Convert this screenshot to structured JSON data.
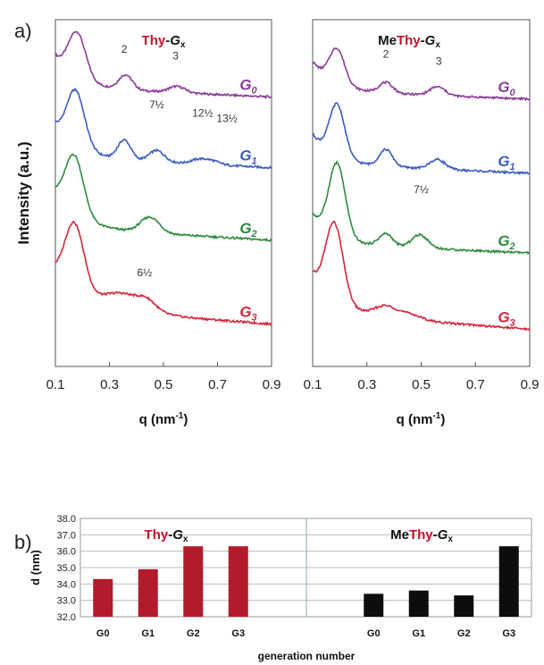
{
  "figure": {
    "panel_a_label": "a)",
    "panel_b_label": "b)"
  },
  "chart_data": [
    {
      "type": "line",
      "title_prefix": "Thy",
      "title_suffix": "-G",
      "title_subscript": "x",
      "xlabel": "q (nm",
      "xlabel_sup": "-1",
      "xlabel_end": ")",
      "ylabel": "Intensity (a.u.)",
      "xlim": [
        0.1,
        0.9
      ],
      "xticks": [
        "0.1",
        "0.3",
        "0.5",
        "0.7",
        "0.9"
      ],
      "series": [
        {
          "name": "G",
          "sub": "0",
          "color": "#8a3c99",
          "offset": 0.86,
          "peaks": [
            [
              0.18,
              0.13,
              0.032
            ],
            [
              0.36,
              0.042,
              0.025
            ],
            [
              0.55,
              0.018,
              0.03
            ]
          ],
          "tail": 0.09,
          "slope": 0.035,
          "decay": 0.08,
          "dip": 0.055
        },
        {
          "name": "G",
          "sub": "1",
          "color": "#3a5cbf",
          "offset": 0.655,
          "peaks": [
            [
              0.175,
              0.16,
              0.033
            ],
            [
              0.355,
              0.055,
              0.024
            ],
            [
              0.475,
              0.032,
              0.028
            ],
            [
              0.63,
              0.012,
              0.03
            ],
            [
              0.68,
              0.01,
              0.03
            ]
          ],
          "tail": 0.09,
          "slope": 0.04,
          "decay": 0.08,
          "dip": 0.05
        },
        {
          "name": "G",
          "sub": "2",
          "color": "#2e8b3c",
          "offset": 0.45,
          "peaks": [
            [
              0.17,
              0.17,
              0.034
            ],
            [
              0.45,
              0.045,
              0.035
            ]
          ],
          "tail": 0.1,
          "slope": 0.045,
          "decay": 0.085,
          "dip": 0.05
        },
        {
          "name": "G",
          "sub": "3",
          "color": "#d3263a",
          "offset": 0.215,
          "peaks": [
            [
              0.17,
              0.2,
              0.036
            ],
            [
              0.35,
              0.05,
              0.08
            ],
            [
              0.44,
              0.02,
              0.03
            ]
          ],
          "tail": 0.1,
          "slope": 0.06,
          "decay": 0.09,
          "dip": 0.045
        }
      ],
      "annotations": [
        {
          "text": "2",
          "q": 0.355,
          "y": 0.905
        },
        {
          "text": "3",
          "q": 0.545,
          "y": 0.885
        },
        {
          "text": "7½",
          "q": 0.475,
          "y": 0.745
        },
        {
          "text": "12½",
          "q": 0.645,
          "y": 0.72
        },
        {
          "text": "13½",
          "q": 0.735,
          "y": 0.705
        },
        {
          "text": "6½",
          "q": 0.43,
          "y": 0.26
        }
      ]
    },
    {
      "type": "line",
      "title_prefix": "Me",
      "title_mid": "Thy",
      "title_suffix": "-G",
      "title_subscript": "x",
      "xlabel": "q (nm",
      "xlabel_sup": "-1",
      "xlabel_end": ")",
      "xlim": [
        0.1,
        0.9
      ],
      "xticks": [
        "0.1",
        "0.3",
        "0.5",
        "0.7",
        "0.9"
      ],
      "series": [
        {
          "name": "G",
          "sub": "0",
          "color": "#8a3c99",
          "offset": 0.845,
          "peaks": [
            [
              0.19,
              0.1,
              0.028
            ],
            [
              0.37,
              0.03,
              0.025
            ],
            [
              0.56,
              0.025,
              0.028
            ]
          ],
          "tail": 0.085,
          "slope": 0.03,
          "decay": 0.075,
          "dip": 0.05
        },
        {
          "name": "G",
          "sub": "1",
          "color": "#3a5cbf",
          "offset": 0.635,
          "peaks": [
            [
              0.19,
              0.15,
              0.028
            ],
            [
              0.37,
              0.048,
              0.024
            ],
            [
              0.56,
              0.028,
              0.028
            ]
          ],
          "tail": 0.085,
          "slope": 0.035,
          "decay": 0.075,
          "dip": 0.05
        },
        {
          "name": "G",
          "sub": "2",
          "color": "#2e8b3c",
          "offset": 0.405,
          "peaks": [
            [
              0.19,
              0.21,
              0.03
            ],
            [
              0.37,
              0.035,
              0.025
            ],
            [
              0.495,
              0.038,
              0.03
            ]
          ],
          "tail": 0.085,
          "slope": 0.035,
          "decay": 0.075,
          "dip": 0.05
        },
        {
          "name": "G",
          "sub": "3",
          "color": "#d3263a",
          "offset": 0.205,
          "peaks": [
            [
              0.18,
              0.22,
              0.032
            ],
            [
              0.37,
              0.03,
              0.04
            ],
            [
              0.46,
              0.015,
              0.04
            ]
          ],
          "tail": 0.11,
          "slope": 0.06,
          "decay": 0.09,
          "dip": 0.05
        }
      ],
      "annotations": [
        {
          "text": "2",
          "q": 0.37,
          "y": 0.89
        },
        {
          "text": "3",
          "q": 0.565,
          "y": 0.87
        },
        {
          "text": "7½",
          "q": 0.5,
          "y": 0.5
        }
      ]
    },
    {
      "type": "bar",
      "ylabel": "d (nm)",
      "xlabel": "generation number",
      "ylim": [
        32.0,
        38.0
      ],
      "yticks": [
        "32.0",
        "33.0",
        "34.0",
        "35.0",
        "36.0",
        "37.0",
        "38.0"
      ],
      "grid": true,
      "groups": [
        {
          "title_prefix": "Thy",
          "title_suffix": "-G",
          "title_subscript": "x",
          "color": "#b31b2b",
          "categories": [
            "G0",
            "G1",
            "G2",
            "G3"
          ],
          "values": [
            34.3,
            34.9,
            36.3,
            36.3
          ]
        },
        {
          "title_prefix": "Me",
          "title_mid": "Thy",
          "title_suffix": "-G",
          "title_subscript": "x",
          "color": "#0d0d0d",
          "categories": [
            "G0",
            "G1",
            "G2",
            "G3"
          ],
          "values": [
            33.4,
            33.6,
            33.3,
            36.3
          ]
        }
      ]
    }
  ]
}
